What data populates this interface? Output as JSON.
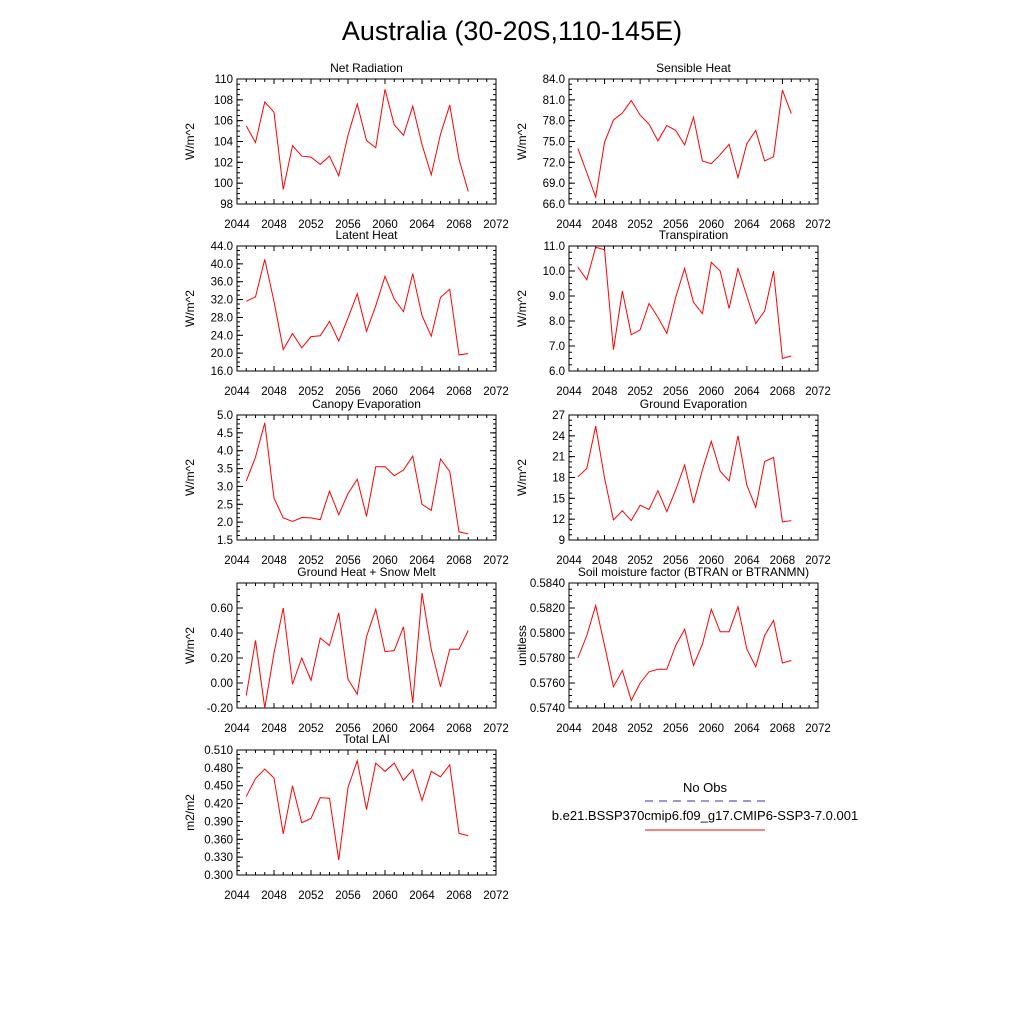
{
  "figure_title": "Australia (30-20S,110-145E)",
  "legend": {
    "entries": [
      {
        "label": "No Obs",
        "color": "#3333aa",
        "style": "dashed"
      },
      {
        "label": "b.e21.BSSP370cmip6.f09_g17.CMIP6-SSP3-7.0.001",
        "color": "#ff0000",
        "style": "solid"
      }
    ]
  },
  "series_color": "#ff0000",
  "chart_data": [
    {
      "type": "line",
      "title": "Net Radiation",
      "ylabel": "W/m^2",
      "xlim": [
        2044,
        2072
      ],
      "ylim": [
        98,
        110
      ],
      "xticks": [
        "2044",
        "2048",
        "2052",
        "2056",
        "2060",
        "2064",
        "2068",
        "2072"
      ],
      "yticks": [
        "98",
        "100",
        "102",
        "104",
        "106",
        "108",
        "110"
      ],
      "x": [
        2045,
        2046,
        2047,
        2048,
        2049,
        2050,
        2051,
        2052,
        2053,
        2054,
        2055,
        2056,
        2057,
        2058,
        2059,
        2060,
        2061,
        2062,
        2063,
        2064,
        2065,
        2066,
        2067,
        2068,
        2069
      ],
      "values": [
        105.5,
        103.9,
        107.8,
        106.8,
        99.4,
        103.6,
        102.6,
        102.5,
        101.8,
        102.6,
        100.7,
        104.6,
        107.6,
        104.1,
        103.4,
        109.0,
        105.6,
        104.6,
        107.4,
        103.7,
        100.8,
        104.7,
        107.5,
        102.3,
        99.2
      ]
    },
    {
      "type": "line",
      "title": "Sensible Heat",
      "ylabel": "W/m^2",
      "xlim": [
        2044,
        2072
      ],
      "ylim": [
        66,
        84
      ],
      "xticks": [
        "2044",
        "2048",
        "2052",
        "2056",
        "2060",
        "2064",
        "2068",
        "2072"
      ],
      "yticks": [
        "66.0",
        "69.0",
        "72.0",
        "75.0",
        "78.0",
        "81.0",
        "84.0"
      ],
      "x": [
        2045,
        2046,
        2047,
        2048,
        2049,
        2050,
        2051,
        2052,
        2053,
        2054,
        2055,
        2056,
        2057,
        2058,
        2059,
        2060,
        2061,
        2062,
        2063,
        2064,
        2065,
        2066,
        2067,
        2068,
        2069
      ],
      "values": [
        74.0,
        70.5,
        67.0,
        74.9,
        78.1,
        79.1,
        80.9,
        78.8,
        77.5,
        75.1,
        77.3,
        76.6,
        74.5,
        78.5,
        72.2,
        71.8,
        73.1,
        74.6,
        69.8,
        74.7,
        76.6,
        72.2,
        72.8,
        82.4,
        79.0
      ]
    },
    {
      "type": "line",
      "title": "Latent Heat",
      "ylabel": "W/m^2",
      "xlim": [
        2044,
        2072
      ],
      "ylim": [
        16,
        44
      ],
      "xticks": [
        "2044",
        "2048",
        "2052",
        "2056",
        "2060",
        "2064",
        "2068",
        "2072"
      ],
      "yticks": [
        "16.0",
        "20.0",
        "24.0",
        "28.0",
        "32.0",
        "36.0",
        "40.0",
        "44.0"
      ],
      "x": [
        2045,
        2046,
        2047,
        2048,
        2049,
        2050,
        2051,
        2052,
        2053,
        2054,
        2055,
        2056,
        2057,
        2058,
        2059,
        2060,
        2061,
        2062,
        2063,
        2064,
        2065,
        2066,
        2067,
        2068,
        2069
      ],
      "values": [
        31.6,
        32.6,
        41.0,
        31.6,
        20.8,
        24.4,
        21.2,
        23.7,
        23.9,
        27.1,
        22.7,
        27.9,
        33.3,
        24.9,
        30.6,
        37.2,
        32.1,
        29.3,
        37.8,
        28.4,
        23.8,
        32.5,
        34.3,
        19.6,
        19.9
      ]
    },
    {
      "type": "line",
      "title": "Transpiration",
      "ylabel": "W/m^2",
      "xlim": [
        2044,
        2072
      ],
      "ylim": [
        6,
        11
      ],
      "xticks": [
        "2044",
        "2048",
        "2052",
        "2056",
        "2060",
        "2064",
        "2068",
        "2072"
      ],
      "yticks": [
        "6.0",
        "7.0",
        "8.0",
        "9.0",
        "10.0",
        "11.0"
      ],
      "x": [
        2045,
        2046,
        2047,
        2048,
        2049,
        2050,
        2051,
        2052,
        2053,
        2054,
        2055,
        2056,
        2057,
        2058,
        2059,
        2060,
        2061,
        2062,
        2063,
        2064,
        2065,
        2066,
        2067,
        2068,
        2069
      ],
      "values": [
        10.15,
        9.65,
        10.95,
        10.85,
        6.85,
        9.2,
        7.45,
        7.65,
        8.7,
        8.15,
        7.5,
        8.95,
        10.1,
        8.75,
        8.3,
        10.35,
        10.0,
        8.5,
        10.1,
        9.0,
        7.9,
        8.4,
        10.0,
        6.5,
        6.6
      ]
    },
    {
      "type": "line",
      "title": "Canopy Evaporation",
      "ylabel": "W/m^2",
      "xlim": [
        2044,
        2072
      ],
      "ylim": [
        1.5,
        5.0
      ],
      "xticks": [
        "2044",
        "2048",
        "2052",
        "2056",
        "2060",
        "2064",
        "2068",
        "2072"
      ],
      "yticks": [
        "1.5",
        "2.0",
        "2.5",
        "3.0",
        "3.5",
        "4.0",
        "4.5",
        "5.0"
      ],
      "x": [
        2045,
        2046,
        2047,
        2048,
        2049,
        2050,
        2051,
        2052,
        2053,
        2054,
        2055,
        2056,
        2057,
        2058,
        2059,
        2060,
        2061,
        2062,
        2063,
        2064,
        2065,
        2066,
        2067,
        2068,
        2069
      ],
      "values": [
        3.15,
        3.82,
        4.78,
        2.67,
        2.12,
        2.02,
        2.13,
        2.12,
        2.07,
        2.87,
        2.21,
        2.8,
        3.2,
        2.16,
        3.55,
        3.55,
        3.3,
        3.46,
        3.85,
        2.5,
        2.33,
        3.77,
        3.42,
        1.73,
        1.67
      ]
    },
    {
      "type": "line",
      "title": "Ground Evaporation",
      "ylabel": "W/m^2",
      "xlim": [
        2044,
        2072
      ],
      "ylim": [
        9,
        27
      ],
      "xticks": [
        "2044",
        "2048",
        "2052",
        "2056",
        "2060",
        "2064",
        "2068",
        "2072"
      ],
      "yticks": [
        "9",
        "12",
        "15",
        "18",
        "21",
        "24",
        "27"
      ],
      "x": [
        2045,
        2046,
        2047,
        2048,
        2049,
        2050,
        2051,
        2052,
        2053,
        2054,
        2055,
        2056,
        2057,
        2058,
        2059,
        2060,
        2061,
        2062,
        2063,
        2064,
        2065,
        2066,
        2067,
        2068,
        2069
      ],
      "values": [
        18.1,
        19.3,
        25.4,
        17.9,
        11.9,
        13.2,
        11.8,
        14.0,
        13.4,
        16.1,
        13.1,
        16.2,
        19.8,
        14.3,
        19.1,
        23.2,
        18.9,
        17.5,
        24.0,
        16.9,
        13.7,
        20.3,
        20.9,
        11.6,
        11.8
      ]
    },
    {
      "type": "line",
      "title": "Ground Heat + Snow Melt",
      "ylabel": "W/m^2",
      "xlim": [
        2044,
        2072
      ],
      "ylim": [
        -0.2,
        0.8
      ],
      "xticks": [
        "2044",
        "2048",
        "2052",
        "2056",
        "2060",
        "2064",
        "2068",
        "2072"
      ],
      "yticks": [
        "-0.20",
        "0.00",
        "0.20",
        "0.40",
        "0.60"
      ],
      "ytick_values": [
        -0.2,
        0.0,
        0.2,
        0.4,
        0.6
      ],
      "x": [
        2045,
        2046,
        2047,
        2048,
        2049,
        2050,
        2051,
        2052,
        2053,
        2054,
        2055,
        2056,
        2057,
        2058,
        2059,
        2060,
        2061,
        2062,
        2063,
        2064,
        2065,
        2066,
        2067,
        2068,
        2069
      ],
      "values": [
        -0.1,
        0.34,
        -0.2,
        0.24,
        0.6,
        -0.01,
        0.2,
        0.02,
        0.36,
        0.3,
        0.56,
        0.03,
        -0.09,
        0.37,
        0.59,
        0.25,
        0.26,
        0.45,
        -0.16,
        0.72,
        0.27,
        -0.03,
        0.27,
        0.27,
        0.42
      ]
    },
    {
      "type": "line",
      "title": "Soil moisture factor (BTRAN or BTRANMN)",
      "ylabel": "unitless",
      "xlim": [
        2044,
        2072
      ],
      "ylim": [
        0.574,
        0.584
      ],
      "xticks": [
        "2044",
        "2048",
        "2052",
        "2056",
        "2060",
        "2064",
        "2068",
        "2072"
      ],
      "yticks": [
        "0.5740",
        "0.5760",
        "0.5780",
        "0.5800",
        "0.5820",
        "0.5840"
      ],
      "x": [
        2045,
        2046,
        2047,
        2048,
        2049,
        2050,
        2051,
        2052,
        2053,
        2054,
        2055,
        2056,
        2057,
        2058,
        2059,
        2060,
        2061,
        2062,
        2063,
        2064,
        2065,
        2066,
        2067,
        2068,
        2069
      ],
      "values": [
        0.578,
        0.5798,
        0.5822,
        0.579,
        0.5757,
        0.577,
        0.5746,
        0.576,
        0.5769,
        0.5771,
        0.5771,
        0.579,
        0.5803,
        0.5774,
        0.5791,
        0.5819,
        0.5801,
        0.5801,
        0.5821,
        0.5787,
        0.5773,
        0.5798,
        0.581,
        0.5776,
        0.5778
      ]
    },
    {
      "type": "line",
      "title": "Total LAI",
      "ylabel": "m2/m2",
      "xlim": [
        2044,
        2072
      ],
      "ylim": [
        0.3,
        0.51
      ],
      "xticks": [
        "2044",
        "2048",
        "2052",
        "2056",
        "2060",
        "2064",
        "2068",
        "2072"
      ],
      "yticks": [
        "0.300",
        "0.330",
        "0.360",
        "0.390",
        "0.420",
        "0.450",
        "0.480",
        "0.510"
      ],
      "x": [
        2045,
        2046,
        2047,
        2048,
        2049,
        2050,
        2051,
        2052,
        2053,
        2054,
        2055,
        2056,
        2057,
        2058,
        2059,
        2060,
        2061,
        2062,
        2063,
        2064,
        2065,
        2066,
        2067,
        2068,
        2069
      ],
      "values": [
        0.432,
        0.462,
        0.478,
        0.463,
        0.369,
        0.45,
        0.388,
        0.395,
        0.43,
        0.429,
        0.325,
        0.447,
        0.492,
        0.41,
        0.488,
        0.474,
        0.488,
        0.459,
        0.477,
        0.425,
        0.474,
        0.465,
        0.485,
        0.37,
        0.366
      ]
    }
  ]
}
